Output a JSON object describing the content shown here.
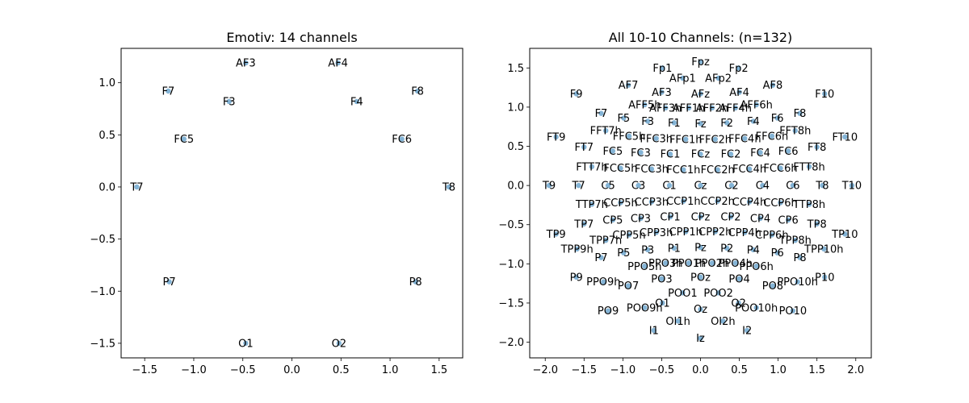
{
  "chart_data": [
    {
      "type": "scatter",
      "title": "Emotiv: 14 channels",
      "xlim": [
        -1.74,
        1.74
      ],
      "ylim": [
        -1.64,
        1.33
      ],
      "xticks": [
        -1.5,
        -1.0,
        -0.5,
        0.0,
        0.5,
        1.0,
        1.5
      ],
      "xtick_labels": [
        "−1.5",
        "−1.0",
        "−0.5",
        "0.0",
        "0.5",
        "1.0",
        "1.5"
      ],
      "yticks": [
        -1.5,
        -1.0,
        -0.5,
        0.0,
        0.5,
        1.0
      ],
      "ytick_labels": [
        "−1.5",
        "−1.0",
        "−0.5",
        "0.0",
        "0.5",
        "1.0"
      ],
      "points": [
        {
          "label": "AF3",
          "x": -0.47,
          "y": 1.19
        },
        {
          "label": "AF4",
          "x": 0.47,
          "y": 1.19
        },
        {
          "label": "F7",
          "x": -1.26,
          "y": 0.92
        },
        {
          "label": "F3",
          "x": -0.64,
          "y": 0.82
        },
        {
          "label": "F4",
          "x": 0.66,
          "y": 0.82
        },
        {
          "label": "F8",
          "x": 1.28,
          "y": 0.92
        },
        {
          "label": "FC5",
          "x": -1.1,
          "y": 0.46
        },
        {
          "label": "FC6",
          "x": 1.12,
          "y": 0.46
        },
        {
          "label": "T7",
          "x": -1.58,
          "y": 0.0
        },
        {
          "label": "T8",
          "x": 1.6,
          "y": 0.0
        },
        {
          "label": "P7",
          "x": -1.25,
          "y": -0.91
        },
        {
          "label": "P8",
          "x": 1.26,
          "y": -0.91
        },
        {
          "label": "O1",
          "x": -0.47,
          "y": -1.5
        },
        {
          "label": "O2",
          "x": 0.48,
          "y": -1.5
        }
      ]
    },
    {
      "type": "scatter",
      "title": "All 10-10 Channels: (n=132)",
      "xlim": [
        -2.2,
        2.2
      ],
      "ylim": [
        -2.2,
        1.75
      ],
      "xticks": [
        -2.0,
        -1.5,
        -1.0,
        -0.5,
        0.0,
        0.5,
        1.0,
        1.5,
        2.0
      ],
      "xtick_labels": [
        "−2.0",
        "−1.5",
        "−1.0",
        "−0.5",
        "0.0",
        "0.5",
        "1.0",
        "1.5",
        "2.0"
      ],
      "yticks": [
        -2.0,
        -1.5,
        -1.0,
        -0.5,
        0.0,
        0.5,
        1.0,
        1.5
      ],
      "ytick_labels": [
        "−2.0",
        "−1.5",
        "−1.0",
        "−0.5",
        "0.0",
        "0.5",
        "1.0",
        "1.5"
      ],
      "points": [
        {
          "label": "Fpz",
          "x": 0.0,
          "y": 1.58
        },
        {
          "label": "Fp1",
          "x": -0.49,
          "y": 1.5
        },
        {
          "label": "Fp2",
          "x": 0.49,
          "y": 1.5
        },
        {
          "label": "AFp1",
          "x": -0.23,
          "y": 1.37
        },
        {
          "label": "AFp2",
          "x": 0.23,
          "y": 1.37
        },
        {
          "label": "AF7",
          "x": -0.93,
          "y": 1.28
        },
        {
          "label": "AF8",
          "x": 0.93,
          "y": 1.28
        },
        {
          "label": "AF3",
          "x": -0.5,
          "y": 1.19
        },
        {
          "label": "AFz",
          "x": 0.0,
          "y": 1.17
        },
        {
          "label": "AF4",
          "x": 0.5,
          "y": 1.19
        },
        {
          "label": "F9",
          "x": -1.6,
          "y": 1.17
        },
        {
          "label": "F10",
          "x": 1.6,
          "y": 1.17
        },
        {
          "label": "AFF5h",
          "x": -0.72,
          "y": 1.03
        },
        {
          "label": "AFF6h",
          "x": 0.72,
          "y": 1.03
        },
        {
          "label": "AFF3h",
          "x": -0.45,
          "y": 0.99
        },
        {
          "label": "AFF1h",
          "x": -0.15,
          "y": 0.99
        },
        {
          "label": "AFF2h",
          "x": 0.15,
          "y": 0.99
        },
        {
          "label": "AFF4h",
          "x": 0.45,
          "y": 0.99
        },
        {
          "label": "F7",
          "x": -1.28,
          "y": 0.92
        },
        {
          "label": "F8",
          "x": 1.28,
          "y": 0.92
        },
        {
          "label": "F5",
          "x": -0.99,
          "y": 0.86
        },
        {
          "label": "F3",
          "x": -0.68,
          "y": 0.82
        },
        {
          "label": "F1",
          "x": -0.34,
          "y": 0.8
        },
        {
          "label": "Fz",
          "x": 0.0,
          "y": 0.79
        },
        {
          "label": "F2",
          "x": 0.34,
          "y": 0.8
        },
        {
          "label": "F4",
          "x": 0.68,
          "y": 0.82
        },
        {
          "label": "F6",
          "x": 0.99,
          "y": 0.86
        },
        {
          "label": "FFT7h",
          "x": -1.22,
          "y": 0.7
        },
        {
          "label": "FFT8h",
          "x": 1.22,
          "y": 0.7
        },
        {
          "label": "FFC5h",
          "x": -0.92,
          "y": 0.63
        },
        {
          "label": "FFC3h",
          "x": -0.57,
          "y": 0.6
        },
        {
          "label": "FFC1h",
          "x": -0.19,
          "y": 0.59
        },
        {
          "label": "FFC2h",
          "x": 0.19,
          "y": 0.59
        },
        {
          "label": "FFC4h",
          "x": 0.57,
          "y": 0.6
        },
        {
          "label": "FFC6h",
          "x": 0.92,
          "y": 0.63
        },
        {
          "label": "FT9",
          "x": -1.86,
          "y": 0.62
        },
        {
          "label": "FT10",
          "x": 1.86,
          "y": 0.62
        },
        {
          "label": "FT7",
          "x": -1.5,
          "y": 0.49
        },
        {
          "label": "FT8",
          "x": 1.5,
          "y": 0.49
        },
        {
          "label": "FC5",
          "x": -1.13,
          "y": 0.44
        },
        {
          "label": "FC3",
          "x": -0.77,
          "y": 0.42
        },
        {
          "label": "FC1",
          "x": -0.39,
          "y": 0.4
        },
        {
          "label": "FCz",
          "x": 0.0,
          "y": 0.4
        },
        {
          "label": "FC2",
          "x": 0.39,
          "y": 0.4
        },
        {
          "label": "FC4",
          "x": 0.77,
          "y": 0.42
        },
        {
          "label": "FC6",
          "x": 1.13,
          "y": 0.44
        },
        {
          "label": "FTT7h",
          "x": -1.4,
          "y": 0.24
        },
        {
          "label": "FTT8h",
          "x": 1.4,
          "y": 0.24
        },
        {
          "label": "FCC5h",
          "x": -1.03,
          "y": 0.22
        },
        {
          "label": "FCC3h",
          "x": -0.63,
          "y": 0.21
        },
        {
          "label": "FCC1h",
          "x": -0.22,
          "y": 0.2
        },
        {
          "label": "FCC2h",
          "x": 0.22,
          "y": 0.2
        },
        {
          "label": "FCC4h",
          "x": 0.63,
          "y": 0.21
        },
        {
          "label": "FCC6h",
          "x": 1.03,
          "y": 0.22
        },
        {
          "label": "T9",
          "x": -1.95,
          "y": 0.0
        },
        {
          "label": "T7",
          "x": -1.57,
          "y": 0.0
        },
        {
          "label": "C5",
          "x": -1.19,
          "y": 0.0
        },
        {
          "label": "C3",
          "x": -0.8,
          "y": 0.0
        },
        {
          "label": "C1",
          "x": -0.4,
          "y": 0.0
        },
        {
          "label": "Cz",
          "x": 0.0,
          "y": 0.0
        },
        {
          "label": "C2",
          "x": 0.4,
          "y": 0.0
        },
        {
          "label": "C4",
          "x": 0.8,
          "y": 0.0
        },
        {
          "label": "C6",
          "x": 1.19,
          "y": 0.0
        },
        {
          "label": "T8",
          "x": 1.57,
          "y": 0.0
        },
        {
          "label": "T10",
          "x": 1.95,
          "y": 0.0
        },
        {
          "label": "TTP7h",
          "x": -1.4,
          "y": -0.24
        },
        {
          "label": "TTP8h",
          "x": 1.4,
          "y": -0.24
        },
        {
          "label": "CCP5h",
          "x": -1.03,
          "y": -0.22
        },
        {
          "label": "CCP3h",
          "x": -0.63,
          "y": -0.21
        },
        {
          "label": "CCP1h",
          "x": -0.22,
          "y": -0.2
        },
        {
          "label": "CCP2h",
          "x": 0.22,
          "y": -0.2
        },
        {
          "label": "CCP4h",
          "x": 0.63,
          "y": -0.21
        },
        {
          "label": "CCP6h",
          "x": 1.03,
          "y": -0.22
        },
        {
          "label": "CP5",
          "x": -1.13,
          "y": -0.44
        },
        {
          "label": "CP3",
          "x": -0.77,
          "y": -0.42
        },
        {
          "label": "CP1",
          "x": -0.39,
          "y": -0.4
        },
        {
          "label": "CPz",
          "x": 0.0,
          "y": -0.4
        },
        {
          "label": "CP2",
          "x": 0.39,
          "y": -0.4
        },
        {
          "label": "CP4",
          "x": 0.77,
          "y": -0.42
        },
        {
          "label": "CP6",
          "x": 1.13,
          "y": -0.44
        },
        {
          "label": "TP7",
          "x": -1.5,
          "y": -0.49
        },
        {
          "label": "TP8",
          "x": 1.5,
          "y": -0.49
        },
        {
          "label": "TP9",
          "x": -1.86,
          "y": -0.62
        },
        {
          "label": "TP10",
          "x": 1.86,
          "y": -0.62
        },
        {
          "label": "TPP7h",
          "x": -1.22,
          "y": -0.7
        },
        {
          "label": "TPP8h",
          "x": 1.22,
          "y": -0.7
        },
        {
          "label": "CPP5h",
          "x": -0.92,
          "y": -0.63
        },
        {
          "label": "CPP3h",
          "x": -0.57,
          "y": -0.6
        },
        {
          "label": "CPP1h",
          "x": -0.19,
          "y": -0.59
        },
        {
          "label": "CPP2h",
          "x": 0.19,
          "y": -0.59
        },
        {
          "label": "CPP4h",
          "x": 0.57,
          "y": -0.6
        },
        {
          "label": "CPP6h",
          "x": 0.92,
          "y": -0.63
        },
        {
          "label": "TPP9h",
          "x": -1.59,
          "y": -0.81
        },
        {
          "label": "TPP10h",
          "x": 1.59,
          "y": -0.81
        },
        {
          "label": "P7",
          "x": -1.28,
          "y": -0.92
        },
        {
          "label": "P5",
          "x": -0.99,
          "y": -0.86
        },
        {
          "label": "P3",
          "x": -0.68,
          "y": -0.82
        },
        {
          "label": "P1",
          "x": -0.34,
          "y": -0.8
        },
        {
          "label": "Pz",
          "x": 0.0,
          "y": -0.79
        },
        {
          "label": "P2",
          "x": 0.34,
          "y": -0.8
        },
        {
          "label": "P4",
          "x": 0.68,
          "y": -0.82
        },
        {
          "label": "P6",
          "x": 0.99,
          "y": -0.86
        },
        {
          "label": "P8",
          "x": 1.28,
          "y": -0.92
        },
        {
          "label": "PPO5h",
          "x": -0.72,
          "y": -1.03
        },
        {
          "label": "PPO3h",
          "x": -0.45,
          "y": -0.99
        },
        {
          "label": "PPO1h",
          "x": -0.15,
          "y": -0.99
        },
        {
          "label": "PPO2h",
          "x": 0.15,
          "y": -0.99
        },
        {
          "label": "PPO4h",
          "x": 0.45,
          "y": -0.99
        },
        {
          "label": "PPO6h",
          "x": 0.72,
          "y": -1.03
        },
        {
          "label": "P9",
          "x": -1.6,
          "y": -1.17
        },
        {
          "label": "P10",
          "x": 1.6,
          "y": -1.17
        },
        {
          "label": "PO3",
          "x": -0.5,
          "y": -1.19
        },
        {
          "label": "POz",
          "x": 0.0,
          "y": -1.17
        },
        {
          "label": "PO4",
          "x": 0.5,
          "y": -1.19
        },
        {
          "label": "PPO9h",
          "x": -1.25,
          "y": -1.23
        },
        {
          "label": "PPO10h",
          "x": 1.25,
          "y": -1.23
        },
        {
          "label": "PO7",
          "x": -0.93,
          "y": -1.28
        },
        {
          "label": "PO8",
          "x": 0.93,
          "y": -1.28
        },
        {
          "label": "POO1",
          "x": -0.23,
          "y": -1.37
        },
        {
          "label": "POO2",
          "x": 0.23,
          "y": -1.37
        },
        {
          "label": "O1",
          "x": -0.49,
          "y": -1.5
        },
        {
          "label": "Oz",
          "x": 0.0,
          "y": -1.58
        },
        {
          "label": "O2",
          "x": 0.49,
          "y": -1.5
        },
        {
          "label": "POO9h",
          "x": -0.72,
          "y": -1.56
        },
        {
          "label": "POO10h",
          "x": 0.72,
          "y": -1.56
        },
        {
          "label": "PO9",
          "x": -1.19,
          "y": -1.6
        },
        {
          "label": "PO10",
          "x": 1.19,
          "y": -1.6
        },
        {
          "label": "OI1h",
          "x": -0.29,
          "y": -1.73
        },
        {
          "label": "OI2h",
          "x": 0.29,
          "y": -1.73
        },
        {
          "label": "I1",
          "x": -0.6,
          "y": -1.85
        },
        {
          "label": "I2",
          "x": 0.6,
          "y": -1.85
        },
        {
          "label": "Iz",
          "x": 0.0,
          "y": -1.95
        }
      ]
    }
  ]
}
